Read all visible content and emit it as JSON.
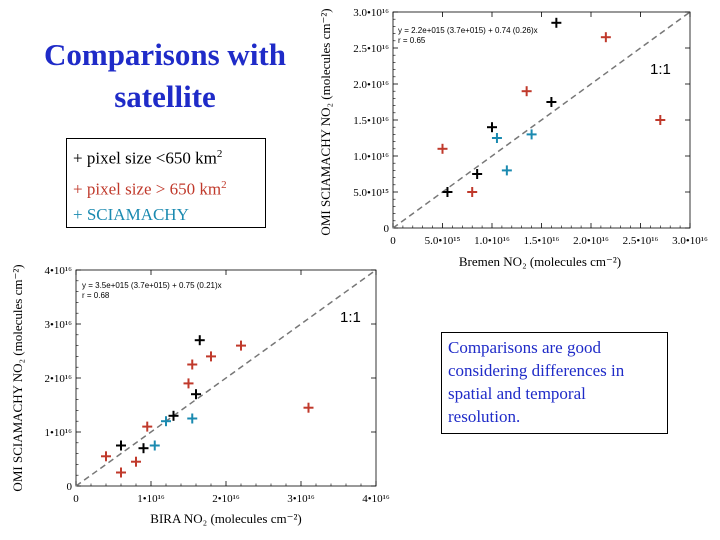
{
  "title": "Comparisons with satellite",
  "legend": {
    "items": [
      {
        "marker": "+",
        "text": "pixel size <650 km",
        "sup": "2",
        "color": "#000000"
      },
      {
        "marker": "+",
        "text": "pixel size > 650 km",
        "sup": "2",
        "color": "#c0392b"
      },
      {
        "marker": "+",
        "text": "SCIAMACHY",
        "sup": "",
        "color": "#1b8ab0"
      }
    ]
  },
  "note": "Comparisons are good considering differences in spatial and temporal resolution.",
  "colors": {
    "black": "#000000",
    "red": "#c0392b",
    "cyan": "#1b8ab0"
  },
  "chart_data": [
    {
      "type": "scatter",
      "xlabel": "Bremen NO₂ (molecules cm⁻²)",
      "ylabel": "OMI SCIAMACHY NO₂ (molecules cm⁻²)",
      "xlim": [
        0,
        3e+16
      ],
      "ylim": [
        0,
        3e+16
      ],
      "xticks": [
        0,
        5000000000000000.0,
        1e+16,
        1.5e+16,
        2e+16,
        2.5e+16,
        3e+16
      ],
      "xticklabels": [
        "0",
        "5.0•10¹⁵",
        "1.0•10¹⁶",
        "1.5•10¹⁶",
        "2.0•10¹⁶",
        "2.5•10¹⁶",
        "3.0•10¹⁶"
      ],
      "yticks": [
        0,
        5000000000000000.0,
        1e+16,
        1.5e+16,
        2e+16,
        2.5e+16,
        3e+16
      ],
      "yticklabels": [
        "0",
        "5.0•10¹⁵",
        "1.0•10¹⁶",
        "1.5•10¹⁶",
        "2.0•10¹⁶",
        "2.5•10¹⁶",
        "3.0•10¹⁶"
      ],
      "fit_text": [
        "y = 2.2e+015 (3.7e+015) + 0.74 (0.26)x",
        "r = 0.65"
      ],
      "one_to_one_label": "1:1",
      "series": [
        {
          "color": "black",
          "x": [
            5500000000000000.0,
            8500000000000000.0,
            1e+16,
            1.6e+16,
            1.65e+16
          ],
          "y": [
            5000000000000000.0,
            7500000000000000.0,
            1.4e+16,
            1.75e+16,
            2.85e+16
          ]
        },
        {
          "color": "red",
          "x": [
            5000000000000000.0,
            8000000000000000.0,
            1.35e+16,
            2.15e+16,
            2.7e+16
          ],
          "y": [
            1.1e+16,
            5000000000000000.0,
            1.9e+16,
            2.65e+16,
            1.5e+16
          ]
        },
        {
          "color": "cyan",
          "x": [
            1.05e+16,
            1.15e+16,
            1.4e+16
          ],
          "y": [
            1.25e+16,
            8000000000000000.0,
            1.3e+16
          ]
        }
      ]
    },
    {
      "type": "scatter",
      "xlabel": "BIRA NO₂ (molecules cm⁻²)",
      "ylabel": "OMI SCIAMACHY NO₂ (molecules cm⁻²)",
      "xlim": [
        0,
        4e+16
      ],
      "ylim": [
        0,
        4e+16
      ],
      "xticks": [
        0,
        1e+16,
        2e+16,
        3e+16,
        4e+16
      ],
      "xticklabels": [
        "0",
        "1•10¹⁶",
        "2•10¹⁶",
        "3•10¹⁶",
        "4•10¹⁶"
      ],
      "yticks": [
        0,
        1e+16,
        2e+16,
        3e+16,
        4e+16
      ],
      "yticklabels": [
        "0",
        "1•10¹⁶",
        "2•10¹⁶",
        "3•10¹⁶",
        "4•10¹⁶"
      ],
      "fit_text": [
        "y = 3.5e+015 (3.7e+015) + 0.75 (0.21)x",
        "r = 0.68"
      ],
      "one_to_one_label": "1:1",
      "series": [
        {
          "color": "black",
          "x": [
            6000000000000000.0,
            9000000000000000.0,
            1.3e+16,
            1.6e+16,
            1.65e+16
          ],
          "y": [
            7500000000000000.0,
            7000000000000000.0,
            1.3e+16,
            1.7e+16,
            2.7e+16
          ]
        },
        {
          "color": "red",
          "x": [
            4000000000000000.0,
            6000000000000000.0,
            8000000000000000.0,
            9500000000000000.0,
            1.5e+16,
            1.55e+16,
            1.8e+16,
            2.2e+16,
            3.1e+16
          ],
          "y": [
            5500000000000000.0,
            2500000000000000.0,
            4500000000000000.0,
            1.1e+16,
            1.9e+16,
            2.25e+16,
            2.4e+16,
            2.6e+16,
            1.45e+16
          ]
        },
        {
          "color": "cyan",
          "x": [
            1.05e+16,
            1.2e+16,
            1.55e+16
          ],
          "y": [
            7500000000000000.0,
            1.2e+16,
            1.25e+16
          ]
        }
      ]
    }
  ]
}
